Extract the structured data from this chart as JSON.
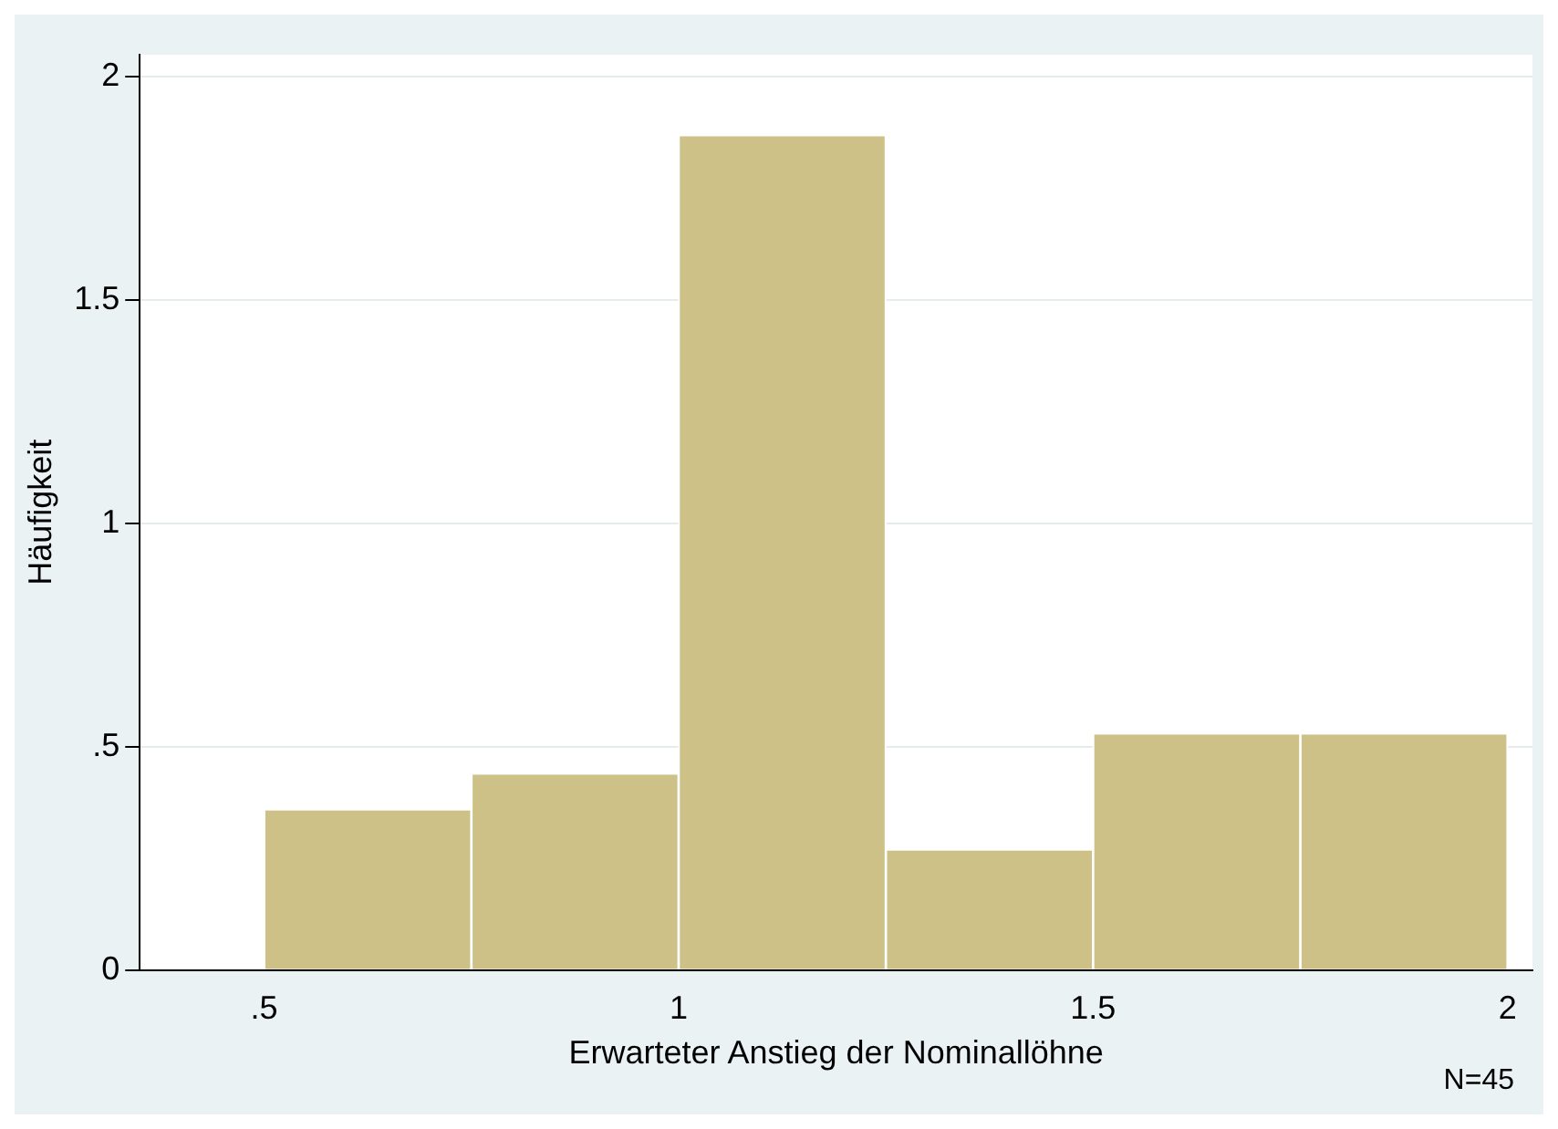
{
  "chart_data": {
    "type": "histogram",
    "xlabel": "Erwarteter Anstieg der Nominallöhne",
    "ylabel": "Häufigkeit",
    "bins": [
      0.5,
      0.75,
      1,
      1.25,
      1.5,
      1.75,
      2
    ],
    "values": [
      0.36,
      0.44,
      1.87,
      0.27,
      0.53,
      0.53
    ],
    "color": "#cdc188",
    "xlim": [
      0.35,
      2.03
    ],
    "xticks": [
      {
        "value": 0.5,
        "label": ".5"
      },
      1,
      {
        "value": 1.5,
        "label": "1.5"
      },
      2
    ],
    "ylim": [
      0,
      2.05
    ],
    "yticks": [
      0,
      {
        "value": 0.5,
        "label": ".5"
      },
      1,
      {
        "value": 1.5,
        "label": "1.5"
      },
      2
    ],
    "grid": "y",
    "annotations": [
      "N=45"
    ]
  }
}
